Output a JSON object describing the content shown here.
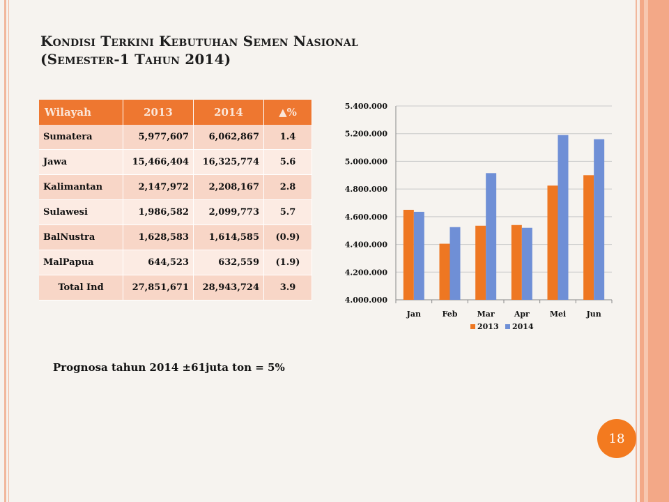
{
  "slide": {
    "title_line1": "Kondisi Terkini Kebutuhan Semen Nasional",
    "title_line2": "(Semester-1 Tahun 2014)",
    "note": "Prognosa tahun 2014 ±61juta ton = 5%",
    "page_number": "18"
  },
  "table": {
    "headers": [
      "Wilayah",
      "2013",
      "2014",
      "▲%"
    ],
    "rows": [
      {
        "wilayah": "Sumatera",
        "v2013": "5,977,607",
        "v2014": "6,062,867",
        "pct": "1.4",
        "neg": false
      },
      {
        "wilayah": "Jawa",
        "v2013": "15,466,404",
        "v2014": "16,325,774",
        "pct": "5.6",
        "neg": false
      },
      {
        "wilayah": "Kalimantan",
        "v2013": "2,147,972",
        "v2014": "2,208,167",
        "pct": "2.8",
        "neg": false
      },
      {
        "wilayah": "Sulawesi",
        "v2013": "1,986,582",
        "v2014": "2,099,773",
        "pct": "5.7",
        "neg": false
      },
      {
        "wilayah": "BalNustra",
        "v2013": "1,628,583",
        "v2014": "1,614,585",
        "pct": "(0.9)",
        "neg": true
      },
      {
        "wilayah": "MalPapua",
        "v2013": "644,523",
        "v2014": "632,559",
        "pct": "(1.9)",
        "neg": true
      },
      {
        "wilayah": "Total Ind",
        "v2013": "27,851,671",
        "v2014": "28,943,724",
        "pct": "3.9",
        "neg": false
      }
    ]
  },
  "chart_data": {
    "type": "bar",
    "categories": [
      "Jan",
      "Feb",
      "Mar",
      "Apr",
      "Mei",
      "Jun"
    ],
    "series": [
      {
        "name": "2013",
        "values": [
          4650000,
          4405000,
          4535000,
          4540000,
          4825000,
          4900000
        ],
        "color": "#ee7722"
      },
      {
        "name": "2014",
        "values": [
          4635000,
          4525000,
          4915000,
          4520000,
          5190000,
          5160000
        ],
        "color": "#6f8fd6"
      }
    ],
    "ylim": [
      4000000,
      5400000
    ],
    "yticks": [
      4000000,
      4200000,
      4400000,
      4600000,
      4800000,
      5000000,
      5200000,
      5400000
    ],
    "ytick_labels": [
      "4.000.000",
      "4.200.000",
      "4.400.000",
      "4.600.000",
      "4.800.000",
      "5.000.000",
      "5.200.000",
      "5.400.000"
    ],
    "grid": true,
    "legend": "bottom"
  }
}
